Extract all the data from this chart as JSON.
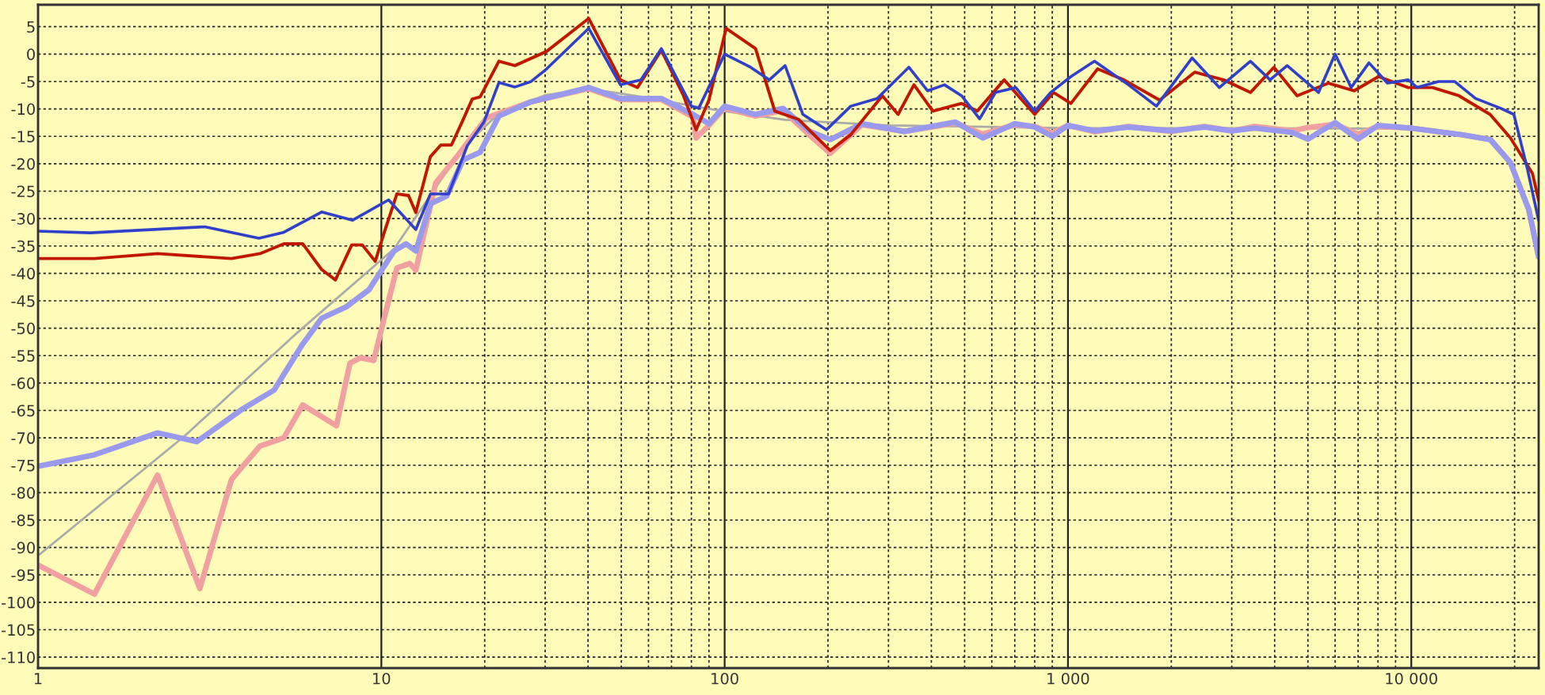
{
  "chart_data": {
    "type": "line",
    "log": "x",
    "grid": true,
    "marker": "none",
    "line_style": "solid",
    "xlim": [
      1,
      23500
    ],
    "ylim": [
      -112,
      9
    ],
    "xticks": [
      1,
      10,
      {
        "value": 20,
        "label": null
      },
      {
        "value": 30,
        "label": null
      },
      {
        "value": 40,
        "label": null
      },
      {
        "value": 50,
        "label": null
      },
      {
        "value": 60,
        "label": null
      },
      {
        "value": 70,
        "label": null
      },
      {
        "value": 80,
        "label": null
      },
      {
        "value": 90,
        "label": null
      },
      100,
      {
        "value": 200,
        "label": null
      },
      {
        "value": 300,
        "label": null
      },
      {
        "value": 400,
        "label": null
      },
      {
        "value": 500,
        "label": null
      },
      {
        "value": 600,
        "label": null
      },
      {
        "value": 700,
        "label": null
      },
      {
        "value": 800,
        "label": null
      },
      {
        "value": 900,
        "label": null
      },
      {
        "value": 1000,
        "label": "1 000"
      },
      {
        "value": 2000,
        "label": null
      },
      {
        "value": 3000,
        "label": null
      },
      {
        "value": 4000,
        "label": null
      },
      {
        "value": 5000,
        "label": null
      },
      {
        "value": 6000,
        "label": null
      },
      {
        "value": 7000,
        "label": null
      },
      {
        "value": 8000,
        "label": null
      },
      {
        "value": 9000,
        "label": null
      },
      {
        "value": 10000,
        "label": "10 000"
      },
      {
        "value": 20000,
        "label": null
      }
    ],
    "yticks": [
      5,
      0,
      -5,
      -10,
      -15,
      -20,
      -25,
      -30,
      -35,
      -40,
      -45,
      -50,
      -55,
      -60,
      -65,
      -70,
      -75,
      -80,
      -85,
      -90,
      -95,
      -100,
      -105,
      -110
    ],
    "series": [
      {
        "color": "#aaaaaa",
        "x": [
          1,
          2.67,
          5.6,
          10.9,
          17.3,
          22,
          30,
          40,
          60,
          90,
          150,
          300,
          1000,
          3000,
          10000,
          14000,
          17000,
          19450,
          22000,
          23500
        ],
        "values": [
          -91.5,
          -69.7,
          -51.2,
          -35.5,
          -17,
          -10.8,
          -7.5,
          -6.3,
          -8,
          -10,
          -12,
          -13,
          -13.5,
          -13.5,
          -13.6,
          -14.5,
          -15.6,
          -19.8,
          -28.4,
          -37
        ]
      },
      {
        "color": "#f0a0a0",
        "x": [
          1,
          1.46,
          2.23,
          2.96,
          3.66,
          4.43,
          5.2,
          5.9,
          7.4,
          8.1,
          8.7,
          9.5,
          10.2,
          11.1,
          12.1,
          12.6,
          14.4,
          16.6,
          18.2,
          20.3,
          22.5,
          27.3,
          40.2,
          49.7,
          65.4,
          80.9,
          82.6,
          90,
          100,
          123,
          148,
          177,
          203,
          251,
          334,
          470,
          565,
          700,
          800,
          900,
          1000,
          1200,
          1500,
          2000,
          2500,
          3000,
          3500,
          4500,
          5000,
          6000,
          7000,
          8000,
          10000,
          14000,
          17000,
          19450,
          22000,
          23500
        ],
        "values": [
          -93.2,
          -98.5,
          -76.8,
          -97.5,
          -77.6,
          -71.5,
          -70,
          -64,
          -67.8,
          -56.4,
          -55.4,
          -55.9,
          -48.1,
          -39,
          -38.2,
          -39.4,
          -23.5,
          -18.7,
          -15.4,
          -11.6,
          -10.6,
          -8.7,
          -6.3,
          -8.3,
          -8.3,
          -11.5,
          -15.3,
          -13,
          -9.8,
          -11.3,
          -10.3,
          -14.8,
          -18.1,
          -12.9,
          -14.1,
          -12.6,
          -14.6,
          -12.9,
          -13.2,
          -14.4,
          -13,
          -14.2,
          -13.2,
          -14.1,
          -13.2,
          -14,
          -13.2,
          -14,
          -13.4,
          -12.8,
          -14.6,
          -13.2,
          -13.5,
          -14.7,
          -15.6,
          -19.8,
          -28.4,
          -37
        ]
      },
      {
        "color": "#9999ee",
        "x": [
          1,
          1.46,
          2.23,
          2.9,
          3.95,
          4.87,
          5.9,
          6.7,
          7.9,
          9.2,
          10.9,
          11.8,
          12.6,
          13.9,
          15.5,
          17.3,
          19.4,
          22,
          27.3,
          40.2,
          49.7,
          65.4,
          80.9,
          90,
          100,
          123,
          148,
          177,
          203,
          251,
          334,
          470,
          565,
          700,
          800,
          900,
          1000,
          1200,
          1500,
          2000,
          2500,
          3000,
          3500,
          4500,
          5000,
          6000,
          7000,
          8000,
          10000,
          14000,
          17000,
          19450,
          22000,
          23500
        ],
        "values": [
          -75.2,
          -73.1,
          -69.1,
          -70.7,
          -64.7,
          -61.3,
          -52.9,
          -48.2,
          -46.1,
          -43,
          -35.9,
          -34.6,
          -35.9,
          -27.3,
          -25.9,
          -19.3,
          -17.9,
          -11.3,
          -8.7,
          -6.1,
          -8.1,
          -8.1,
          -11,
          -12.7,
          -9.5,
          -11,
          -9.9,
          -14.1,
          -15.6,
          -12.7,
          -14.1,
          -12.4,
          -15.3,
          -12.7,
          -13.3,
          -15,
          -13,
          -14,
          -13.3,
          -14,
          -13.3,
          -14,
          -13.5,
          -14.3,
          -15.5,
          -12.5,
          -15.5,
          -13,
          -13.5,
          -14.7,
          -15.6,
          -19.8,
          -28.4,
          -37
        ]
      },
      {
        "color": "#c01800",
        "x": [
          1,
          1.46,
          2.23,
          3.66,
          4.43,
          5.2,
          5.9,
          6.7,
          7.35,
          8.2,
          8.8,
          9.6,
          10.2,
          11.1,
          12,
          12.6,
          13.9,
          14.9,
          16,
          17.3,
          18.4,
          19.4,
          22,
          24.5,
          30.3,
          40.2,
          49.7,
          55.7,
          65.4,
          75.9,
          82.6,
          90,
          101,
          123,
          140,
          164,
          203,
          233,
          288,
          320,
          356,
          404,
          490,
          544,
          652,
          800,
          908,
          1020,
          1220,
          1455,
          1850,
          2340,
          2840,
          3400,
          3980,
          4650,
          5740,
          6810,
          8030,
          9800,
          11540,
          13770,
          16960,
          19450,
          22550,
          23500
        ],
        "values": [
          -37.3,
          -37.3,
          -36.4,
          -37.3,
          -36.4,
          -34.6,
          -34.6,
          -39.3,
          -41.2,
          -34.8,
          -34.8,
          -37.8,
          -32.5,
          -25.5,
          -25.8,
          -28.9,
          -18.7,
          -16.6,
          -16.6,
          -12,
          -8.2,
          -7.8,
          -1.3,
          -2.1,
          0.5,
          6.5,
          -4.7,
          -6.1,
          0.7,
          -7.6,
          -13.8,
          -8.4,
          4.7,
          1,
          -10.4,
          -11.9,
          -17.6,
          -14.7,
          -7.6,
          -11,
          -5.6,
          -10.4,
          -9,
          -10.4,
          -4.7,
          -11,
          -7,
          -9,
          -2.7,
          -4.7,
          -8.4,
          -3.3,
          -4.7,
          -7,
          -2.4,
          -7.6,
          -5.3,
          -6.7,
          -4.1,
          -6.1,
          -6.1,
          -7.6,
          -11,
          -15.3,
          -21.8,
          -26.7
        ]
      },
      {
        "color": "#3040c8",
        "x": [
          1,
          1.42,
          3.06,
          4.4,
          5.2,
          6.7,
          8.25,
          10.5,
          12.6,
          13.9,
          15.7,
          17.8,
          19.9,
          22,
          24.5,
          27.3,
          30.3,
          40.2,
          49.7,
          57,
          65.4,
          80,
          84,
          100,
          119,
          135,
          150,
          169,
          198,
          233,
          278,
          344,
          390,
          437,
          490,
          553,
          615,
          705,
          800,
          890,
          1020,
          1195,
          1500,
          1810,
          2300,
          2760,
          3400,
          3880,
          4350,
          5370,
          6000,
          6680,
          7530,
          8520,
          9800,
          10400,
          12000,
          13370,
          15390,
          18230,
          19900,
          21800,
          23500
        ],
        "values": [
          -32.3,
          -32.6,
          -31.5,
          -33.6,
          -32.5,
          -28.8,
          -30.3,
          -26.6,
          -32,
          -25.5,
          -25.5,
          -16.7,
          -12.4,
          -5.2,
          -6,
          -5,
          -2.7,
          4.7,
          -5.6,
          -4.7,
          1,
          -9.5,
          -9.9,
          0,
          -2.4,
          -4.7,
          -2.1,
          -11,
          -13.8,
          -9.5,
          -8.1,
          -2.4,
          -6.7,
          -5.6,
          -7.6,
          -11.8,
          -7,
          -6.1,
          -10.4,
          -7,
          -4.1,
          -1.3,
          -5.6,
          -9.5,
          -0.7,
          -6.1,
          -1.3,
          -4.7,
          -2.1,
          -7,
          0,
          -6.1,
          -1.6,
          -5.3,
          -4.7,
          -6.1,
          -5,
          -5,
          -8.1,
          -9.9,
          -11,
          -21,
          -30.4
        ]
      }
    ]
  }
}
